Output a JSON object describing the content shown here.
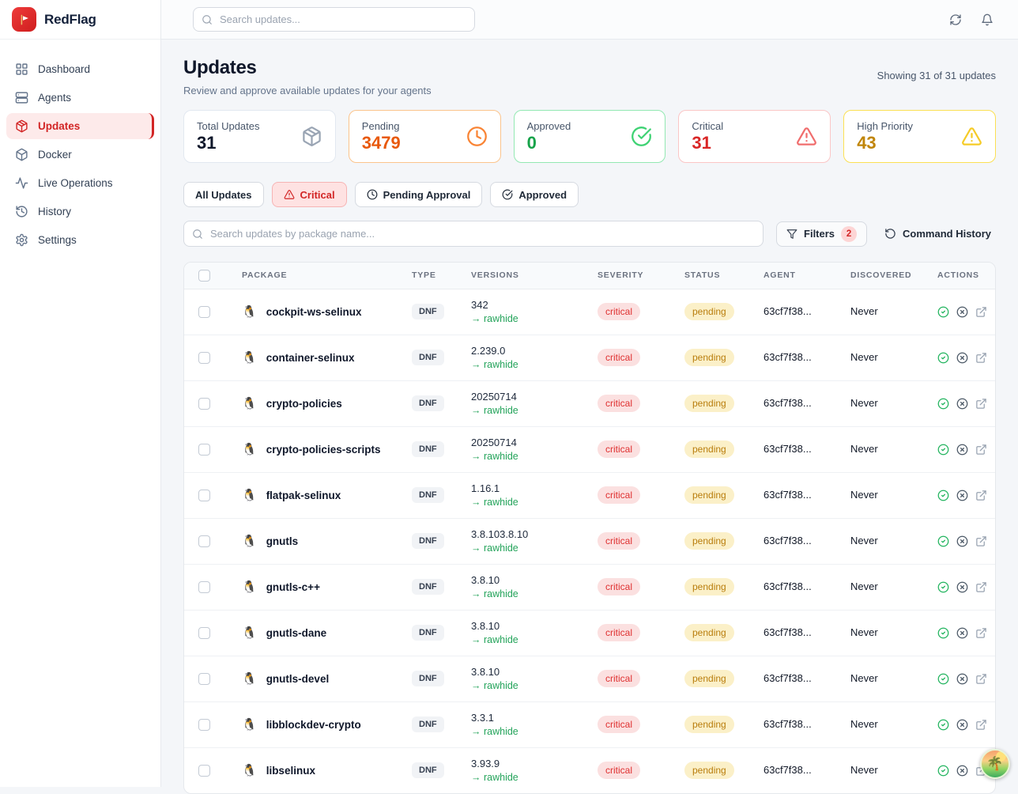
{
  "brand": {
    "name": "RedFlag",
    "logo_icon": "red-flag",
    "accent_color": "#d22525"
  },
  "topbar": {
    "search_placeholder": "Search updates...",
    "refresh_icon": "refresh",
    "notifications_icon": "bell"
  },
  "sidebar": {
    "items": [
      {
        "label": "Dashboard",
        "icon": "grid",
        "active": false
      },
      {
        "label": "Agents",
        "icon": "server",
        "active": false
      },
      {
        "label": "Updates",
        "icon": "package",
        "active": true
      },
      {
        "label": "Docker",
        "icon": "box",
        "active": false
      },
      {
        "label": "Live Operations",
        "icon": "activity",
        "active": false
      },
      {
        "label": "History",
        "icon": "history",
        "active": false
      },
      {
        "label": "Settings",
        "icon": "settings",
        "active": false
      }
    ]
  },
  "page": {
    "title": "Updates",
    "subtitle": "Review and approve available updates for your agents",
    "showing": "Showing 31 of 31 updates"
  },
  "stats": [
    {
      "label": "Total Updates",
      "value": "31",
      "icon": "package",
      "value_color": "#0f172a",
      "border_color": "#e2e8f0",
      "icon_color": "#9aa5b4"
    },
    {
      "label": "Pending",
      "value": "3479",
      "icon": "clock",
      "value_color": "#e8590c",
      "border_color": "#fbc48c",
      "icon_color": "#f98435"
    },
    {
      "label": "Approved",
      "value": "0",
      "icon": "check-circle",
      "value_color": "#17a34a",
      "border_color": "#93e8b2",
      "icon_color": "#3ed273"
    },
    {
      "label": "Critical",
      "value": "31",
      "icon": "alert-triangle",
      "value_color": "#d92626",
      "border_color": "#fbc6c6",
      "icon_color": "#f06d6d"
    },
    {
      "label": "High Priority",
      "value": "43",
      "icon": "alert-triangle",
      "value_color": "#c08508",
      "border_color": "#fbe054",
      "icon_color": "#f5cb27"
    }
  ],
  "filter_tabs": [
    {
      "label": "All Updates",
      "icon": null,
      "active": false
    },
    {
      "label": "Critical",
      "icon": "alert-triangle",
      "active": true
    },
    {
      "label": "Pending Approval",
      "icon": "clock",
      "active": false
    },
    {
      "label": "Approved",
      "icon": "check-circle",
      "active": false
    }
  ],
  "toolbar": {
    "search_placeholder": "Search updates by package name...",
    "filters_label": "Filters",
    "filters_badge": "2",
    "filters_icon": "funnel",
    "command_history_label": "Command History",
    "command_history_icon": "rotate-ccw"
  },
  "table": {
    "columns": [
      "PACKAGE",
      "TYPE",
      "VERSIONS",
      "SEVERITY",
      "STATUS",
      "AGENT",
      "DISCOVERED",
      "ACTIONS"
    ],
    "package_icon": "linux-penguin",
    "package_icon_glyph": "🐧",
    "actions_icons": [
      "circle-check",
      "circle-x",
      "external-link"
    ],
    "rows": [
      {
        "package": "cockpit-ws-selinux",
        "type": "DNF",
        "version": "342",
        "target": "→ rawhide",
        "severity": "critical",
        "status": "pending",
        "agent": "63cf7f38...",
        "discovered": "Never"
      },
      {
        "package": "container-selinux",
        "type": "DNF",
        "version": "2.239.0",
        "target": "→ rawhide",
        "severity": "critical",
        "status": "pending",
        "agent": "63cf7f38...",
        "discovered": "Never"
      },
      {
        "package": "crypto-policies",
        "type": "DNF",
        "version": "20250714",
        "target": "→ rawhide",
        "severity": "critical",
        "status": "pending",
        "agent": "63cf7f38...",
        "discovered": "Never"
      },
      {
        "package": "crypto-policies-scripts",
        "type": "DNF",
        "version": "20250714",
        "target": "→ rawhide",
        "severity": "critical",
        "status": "pending",
        "agent": "63cf7f38...",
        "discovered": "Never"
      },
      {
        "package": "flatpak-selinux",
        "type": "DNF",
        "version": "1.16.1",
        "target": "→ rawhide",
        "severity": "critical",
        "status": "pending",
        "agent": "63cf7f38...",
        "discovered": "Never"
      },
      {
        "package": "gnutls",
        "type": "DNF",
        "version": "3.8.103.8.10",
        "target": "→ rawhide",
        "severity": "critical",
        "status": "pending",
        "agent": "63cf7f38...",
        "discovered": "Never"
      },
      {
        "package": "gnutls-c++",
        "type": "DNF",
        "version": "3.8.10",
        "target": "→ rawhide",
        "severity": "critical",
        "status": "pending",
        "agent": "63cf7f38...",
        "discovered": "Never"
      },
      {
        "package": "gnutls-dane",
        "type": "DNF",
        "version": "3.8.10",
        "target": "→ rawhide",
        "severity": "critical",
        "status": "pending",
        "agent": "63cf7f38...",
        "discovered": "Never"
      },
      {
        "package": "gnutls-devel",
        "type": "DNF",
        "version": "3.8.10",
        "target": "→ rawhide",
        "severity": "critical",
        "status": "pending",
        "agent": "63cf7f38...",
        "discovered": "Never"
      },
      {
        "package": "libblockdev-crypto",
        "type": "DNF",
        "version": "3.3.1",
        "target": "→ rawhide",
        "severity": "critical",
        "status": "pending",
        "agent": "63cf7f38...",
        "discovered": "Never"
      },
      {
        "package": "libselinux",
        "type": "DNF",
        "version": "3.93.9",
        "target": "→ rawhide",
        "severity": "critical",
        "status": "pending",
        "agent": "63cf7f38...",
        "discovered": "Never"
      }
    ]
  },
  "overlay": {
    "icon": "tropical-island",
    "glyph": "🌴"
  }
}
